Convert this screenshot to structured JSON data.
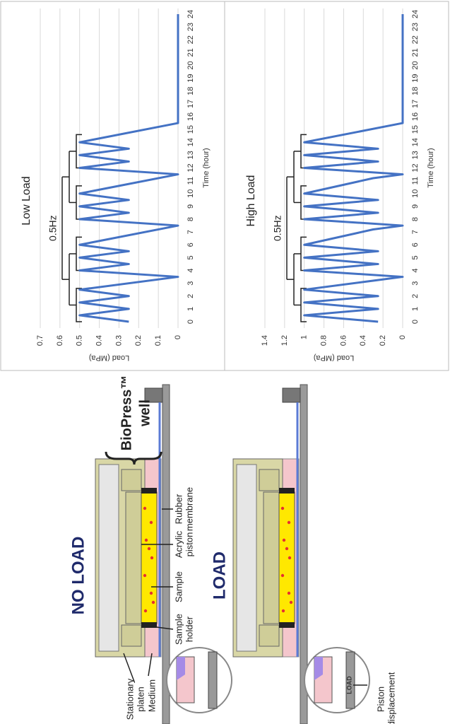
{
  "chart_data": [
    {
      "type": "line",
      "title": "Low Load",
      "xlabel": "Time (hour)",
      "ylabel": "Load (MPa)",
      "annotation": "0.5Hz",
      "x": [
        0,
        0.5,
        1,
        1.5,
        2,
        2.5,
        3.5,
        4,
        4.5,
        5,
        5.5,
        6,
        7.5,
        8,
        8.5,
        9,
        9.5,
        10,
        11.5,
        12,
        12.5,
        13,
        13.5,
        14,
        15.5,
        24
      ],
      "values": [
        0.25,
        0.5,
        0.25,
        0.5,
        0.25,
        0.5,
        0,
        0.5,
        0.25,
        0.5,
        0.25,
        0.5,
        0,
        0.5,
        0.25,
        0.5,
        0.25,
        0.5,
        0,
        0.5,
        0.25,
        0.5,
        0.25,
        0.5,
        0,
        0
      ],
      "color": "#4472c4",
      "xlim": [
        0,
        24
      ],
      "xticks": [
        0,
        1,
        2,
        3,
        4,
        5,
        6,
        7,
        8,
        9,
        10,
        11,
        12,
        13,
        14,
        15,
        16,
        17,
        18,
        19,
        20,
        21,
        22,
        23,
        24
      ],
      "ylim": [
        0,
        0.7
      ],
      "yticks": [
        0,
        0.1,
        0.2,
        0.3,
        0.4,
        0.5,
        0.6,
        0.7
      ],
      "grid": true
    },
    {
      "type": "line",
      "title": "High Load",
      "xlabel": "Time (hour)",
      "ylabel": "Load (MPa)",
      "annotation": "0.5Hz",
      "x": [
        0,
        0.5,
        1,
        1.5,
        2,
        2.5,
        3.2,
        3.5,
        4,
        4.5,
        5,
        5.5,
        6,
        7.2,
        7.5,
        8,
        8.5,
        9,
        9.5,
        10,
        11.2,
        11.5,
        12,
        12.5,
        13,
        13.5,
        14,
        15.5,
        24
      ],
      "values": [
        0.25,
        1,
        0.25,
        1,
        0.25,
        1,
        0.3,
        0,
        1,
        0.25,
        1,
        0.25,
        1,
        0.3,
        0,
        1,
        0.25,
        1,
        0.25,
        1,
        0.3,
        0,
        1,
        0.25,
        1,
        0.25,
        1,
        0,
        0
      ],
      "color": "#4472c4",
      "xlim": [
        0,
        24
      ],
      "xticks": [
        0,
        1,
        2,
        3,
        4,
        5,
        6,
        7,
        8,
        9,
        10,
        11,
        12,
        13,
        14,
        15,
        16,
        17,
        18,
        19,
        20,
        21,
        22,
        23,
        24
      ],
      "ylim": [
        0,
        1.4
      ],
      "yticks": [
        0,
        0.2,
        0.4,
        0.6,
        0.8,
        1,
        1.2,
        1.4
      ],
      "grid": true
    }
  ],
  "diagram": {
    "no_load": "NO LOAD",
    "load": "LOAD",
    "biopress": [
      "BioPress™",
      "well"
    ],
    "stationary_platen": [
      "Stationary",
      "platen"
    ],
    "medium": "Medium",
    "sample_holder": [
      "Sample",
      "holder"
    ],
    "sample": "Sample",
    "acrylic_piston": [
      "Acrylic",
      "piston"
    ],
    "rubber_membrane": [
      "Rubber",
      "membrane"
    ],
    "piston_displacement": [
      "Piston",
      "displacement"
    ],
    "inset_load": "LOAD"
  }
}
